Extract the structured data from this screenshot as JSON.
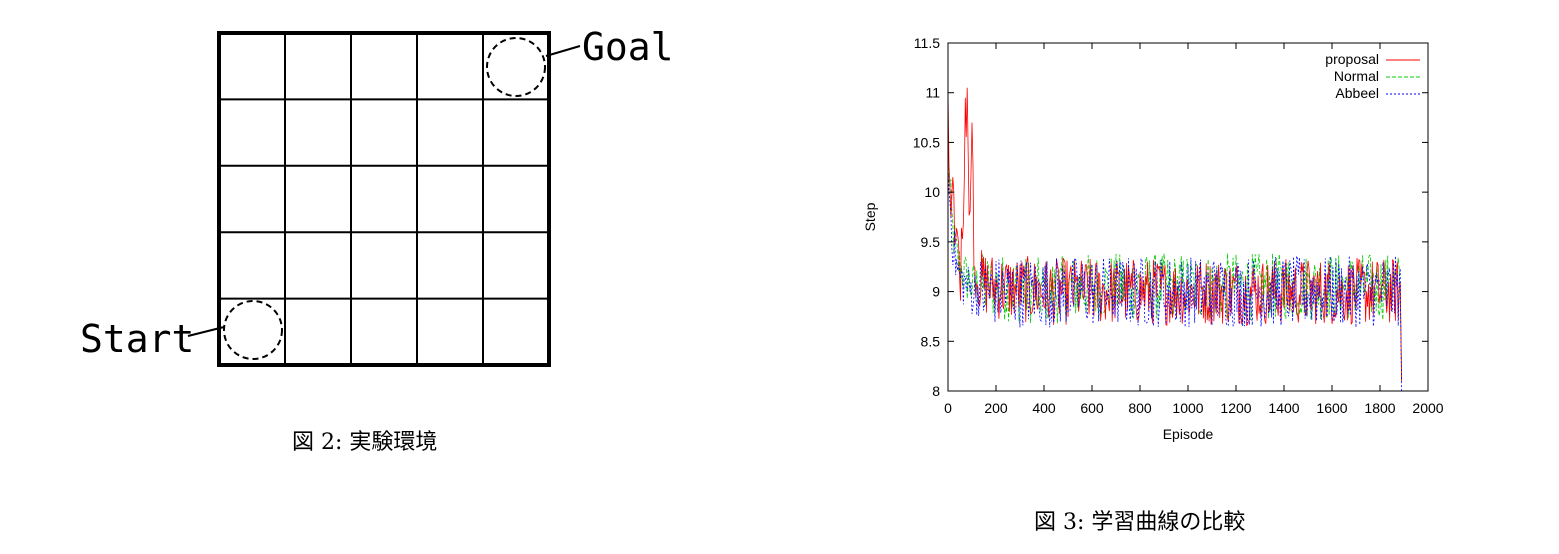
{
  "figure2": {
    "caption": "図 2: 実験環境",
    "grid": {
      "rows": 5,
      "cols": 5
    },
    "goal_label": "Goal",
    "start_label": "Start"
  },
  "figure3": {
    "caption": "図 3: 学習曲線の比較"
  },
  "chart_data": {
    "type": "line",
    "xlabel": "Episode",
    "ylabel": "Step",
    "xlim": [
      0,
      2000
    ],
    "ylim": [
      8,
      11.5
    ],
    "xticks": [
      0,
      200,
      400,
      600,
      800,
      1000,
      1200,
      1400,
      1600,
      1800,
      2000
    ],
    "yticks": [
      8,
      8.5,
      9,
      9.5,
      10,
      10.5,
      11,
      11.5
    ],
    "ytick_labels": [
      "8",
      "8.5",
      "9",
      "9.5",
      "10",
      "10.5",
      "11",
      "11.5"
    ],
    "x_end": 1890,
    "grid": false,
    "legend_position": "top-right",
    "series": [
      {
        "name": "proposal",
        "color": "#ff0000",
        "dash": "solid",
        "approx_points": [
          [
            0,
            10.9
          ],
          [
            10,
            9.8
          ],
          [
            20,
            10.1
          ],
          [
            30,
            9.3
          ],
          [
            40,
            9.6
          ],
          [
            50,
            9.0
          ],
          [
            60,
            9.7
          ],
          [
            70,
            10.3
          ],
          [
            80,
            11.05
          ],
          [
            90,
            9.4
          ],
          [
            100,
            10.7
          ],
          [
            110,
            9.2
          ],
          [
            130,
            9.1
          ],
          [
            200,
            9.05
          ],
          [
            400,
            9.0
          ],
          [
            600,
            9.0
          ],
          [
            1000,
            9.0
          ],
          [
            1400,
            9.0
          ],
          [
            1800,
            9.0
          ],
          [
            1885,
            9.0
          ],
          [
            1890,
            8.1
          ]
        ],
        "steady_mean": 9.0,
        "steady_range": [
          8.6,
          9.4
        ],
        "spike_max": 11.05
      },
      {
        "name": "Normal",
        "color": "#00cc00",
        "dash": "dashed",
        "approx_points": [
          [
            0,
            10.3
          ],
          [
            20,
            9.6
          ],
          [
            40,
            9.3
          ],
          [
            60,
            9.2
          ],
          [
            100,
            9.05
          ],
          [
            200,
            9.05
          ],
          [
            400,
            9.0
          ],
          [
            600,
            9.05
          ],
          [
            1000,
            9.05
          ],
          [
            1400,
            9.05
          ],
          [
            1800,
            9.05
          ],
          [
            1885,
            9.05
          ],
          [
            1890,
            8.1
          ]
        ],
        "steady_mean": 9.05,
        "steady_range": [
          8.75,
          9.55
        ]
      },
      {
        "name": "Abbeel",
        "color": "#0000ff",
        "dash": "dotted",
        "approx_points": [
          [
            0,
            10.2
          ],
          [
            20,
            9.5
          ],
          [
            40,
            9.2
          ],
          [
            60,
            9.1
          ],
          [
            100,
            9.0
          ],
          [
            200,
            9.0
          ],
          [
            400,
            9.0
          ],
          [
            600,
            9.0
          ],
          [
            1000,
            9.0
          ],
          [
            1400,
            9.0
          ],
          [
            1800,
            9.0
          ],
          [
            1885,
            9.0
          ],
          [
            1890,
            8.0
          ]
        ],
        "steady_mean": 9.0,
        "steady_range": [
          8.7,
          9.55
        ]
      }
    ]
  }
}
